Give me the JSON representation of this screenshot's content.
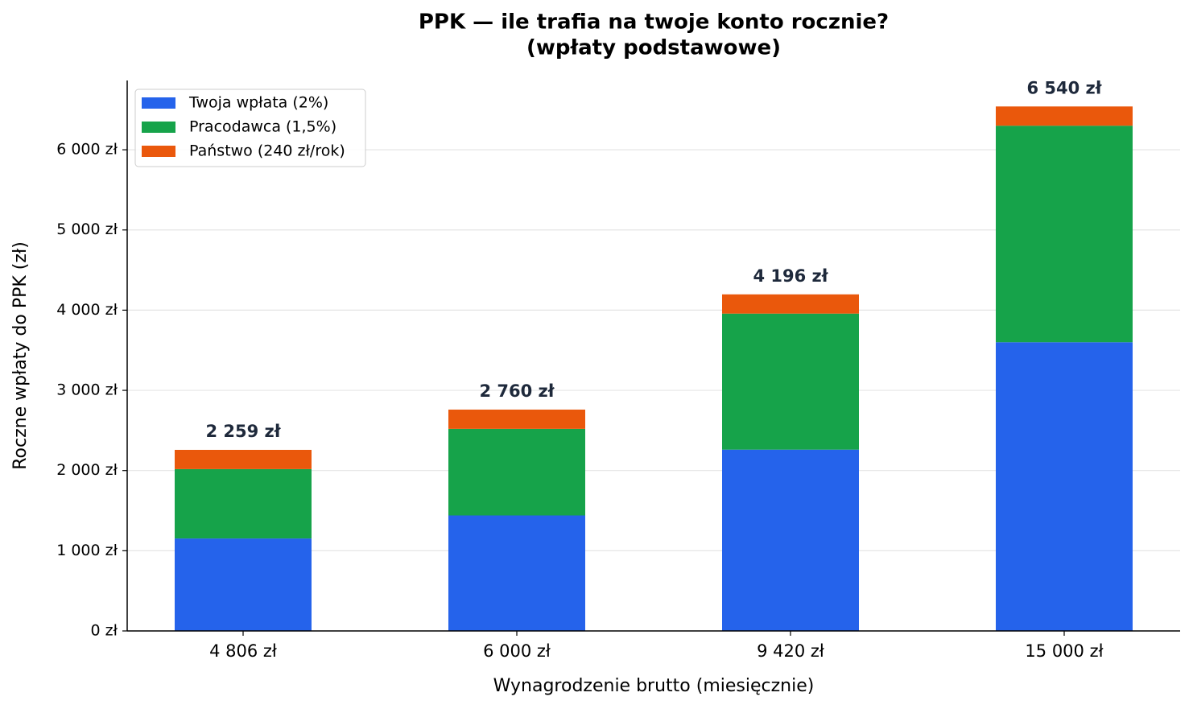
{
  "chart_data": {
    "type": "stacked_bar",
    "title": [
      "PPK — ile trafia na twoje konto rocznie?",
      "(wpłaty podstawowe)"
    ],
    "xlabel": "Wynagrodzenie brutto (miesięcznie)",
    "ylabel": "Roczne wpłaty do PPK (zł)",
    "categories": [
      "4 806 zł",
      "6 000 zł",
      "9 420 zł",
      "15 000 zł"
    ],
    "series": [
      {
        "name": "Twoja wpłata (2%)",
        "color": "#2563eb",
        "values": [
          1153,
          1440,
          2261,
          3600
        ]
      },
      {
        "name": "Pracodawca (1,5%)",
        "color": "#16a34a",
        "values": [
          865,
          1080,
          1696,
          2700
        ]
      },
      {
        "name": "Państwo (240 zł/rok)",
        "color": "#ea580c",
        "values": [
          240,
          240,
          240,
          240
        ]
      }
    ],
    "totals": {
      "values": [
        2259,
        2760,
        4196,
        6540
      ],
      "value_labels": [
        "2 259 zł",
        "2 760 zł",
        "4 196 zł",
        "6 540 zł"
      ]
    },
    "ylim": [
      0,
      6864
    ],
    "yticks": [
      {
        "value": 0,
        "label": "0 zł"
      },
      {
        "value": 1000,
        "label": "1 000 zł"
      },
      {
        "value": 2000,
        "label": "2 000 zł"
      },
      {
        "value": 3000,
        "label": "3 000 zł"
      },
      {
        "value": 4000,
        "label": "4 000 zł"
      },
      {
        "value": 5000,
        "label": "5 000 zł"
      },
      {
        "value": 6000,
        "label": "6 000 zł"
      }
    ],
    "grid": true,
    "legend": "upper left"
  }
}
